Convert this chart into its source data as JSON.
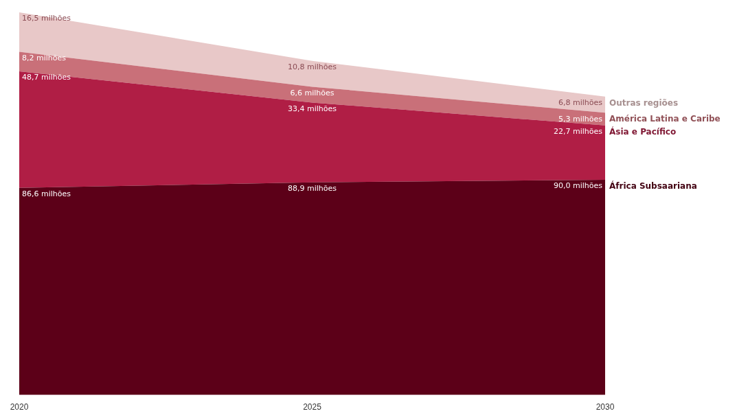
{
  "chart_data": {
    "type": "area",
    "stacked": true,
    "categories": [
      "2020",
      "2025",
      "2030"
    ],
    "series": [
      {
        "name": "África Subsaariana",
        "color": "#5c0018",
        "values": [
          86.6,
          88.9,
          90.0
        ],
        "value_labels": [
          "86,6 milhões",
          "88,9 milhões",
          "90,0 milhões"
        ]
      },
      {
        "name": "Ásia e Pacífico",
        "color": "#b01e45",
        "values": [
          48.7,
          33.4,
          22.7
        ],
        "value_labels": [
          "48,7 milhões",
          "33,4 milhões",
          "22,7 milhões"
        ]
      },
      {
        "name": "América Latina e Caribe",
        "color": "#c97079",
        "values": [
          8.2,
          6.6,
          5.3
        ],
        "value_labels": [
          "8,2 milhões",
          "6,6 milhões",
          "5,3 milhões"
        ]
      },
      {
        "name": "Outras regiões",
        "color": "#e8c8c8",
        "values": [
          16.5,
          10.8,
          6.8
        ],
        "value_labels": [
          "16,5 milhões",
          "10,8 milhões",
          "6,8 milhões"
        ]
      }
    ]
  }
}
